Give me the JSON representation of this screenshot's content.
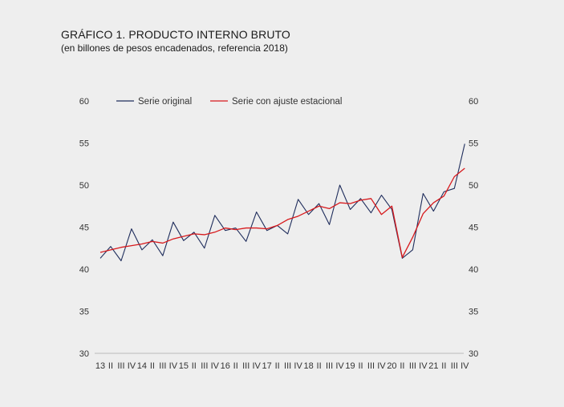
{
  "title": "GRÁFICO 1. PRODUCTO INTERNO BRUTO",
  "subtitle": "(en billones de pesos encadenados, referencia 2018)",
  "colors": {
    "original": "#1f2d5c",
    "adjusted": "#d7191c",
    "background": "#eeeeee",
    "axis": "#bbbbbb"
  },
  "chart_data": {
    "type": "line",
    "title": "GRÁFICO 1. PRODUCTO INTERNO BRUTO",
    "subtitle": "(en billones de pesos encadenados, referencia 2018)",
    "x_tick_labels": [
      "13",
      "II",
      "III",
      "IV",
      "14",
      "II",
      "III",
      "IV",
      "15",
      "II",
      "III",
      "IV",
      "16",
      "II",
      "III",
      "IV",
      "17",
      "II",
      "III",
      "IV",
      "18",
      "II",
      "III",
      "IV",
      "19",
      "II",
      "III",
      "IV",
      "20",
      "II",
      "III",
      "IV",
      "21",
      "II",
      "III",
      "IV"
    ],
    "ylim": [
      30,
      60
    ],
    "yticks": [
      30,
      35,
      40,
      45,
      50,
      55,
      60
    ],
    "grid": false,
    "legend_position": "top",
    "series": [
      {
        "name": "Serie original",
        "color": "#1f2d5c",
        "values": [
          41.3,
          42.7,
          41.0,
          44.8,
          42.3,
          43.5,
          41.6,
          45.6,
          43.4,
          44.4,
          42.5,
          46.4,
          44.6,
          44.9,
          43.3,
          46.8,
          44.6,
          45.2,
          44.2,
          48.3,
          46.5,
          47.8,
          45.3,
          50.0,
          47.1,
          48.4,
          46.7,
          48.8,
          47.1,
          41.3,
          42.3,
          49.0,
          46.9,
          49.2,
          49.6,
          54.9
        ]
      },
      {
        "name": "Serie con ajuste estacional",
        "color": "#d7191c",
        "values": [
          42.0,
          42.3,
          42.6,
          42.8,
          43.0,
          43.3,
          43.1,
          43.6,
          43.9,
          44.2,
          44.1,
          44.4,
          44.9,
          44.7,
          44.9,
          44.9,
          44.8,
          45.2,
          45.9,
          46.3,
          46.9,
          47.5,
          47.2,
          47.9,
          47.8,
          48.2,
          48.4,
          46.5,
          47.5,
          41.4,
          43.8,
          46.6,
          47.9,
          48.7,
          51.0,
          52.0
        ]
      }
    ]
  }
}
